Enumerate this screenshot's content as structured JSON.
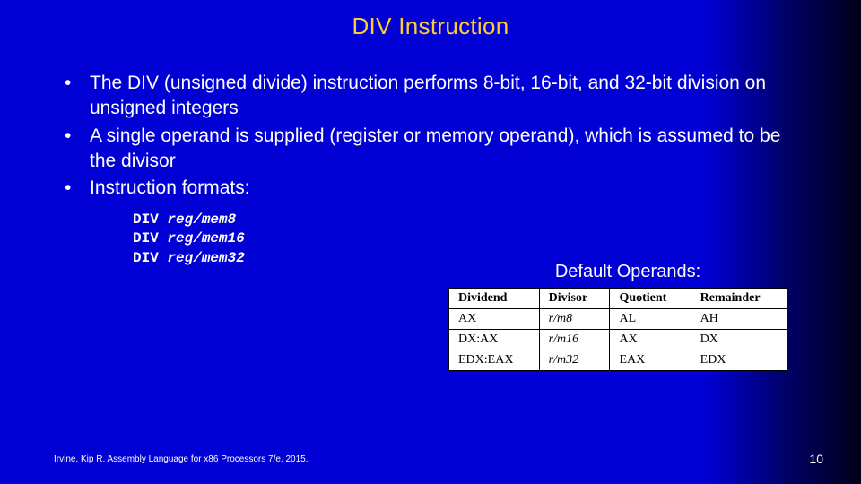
{
  "slide": {
    "title": "DIV Instruction",
    "bullets": [
      "The DIV (unsigned divide) instruction performs 8-bit, 16-bit, and 32-bit division on unsigned integers",
      "A single operand is supplied (register or memory operand), which is assumed to be the divisor",
      "Instruction formats:"
    ],
    "code": [
      {
        "kw": "DIV",
        "op": "reg/mem8"
      },
      {
        "kw": "DIV",
        "op": "reg/mem16"
      },
      {
        "kw": "DIV",
        "op": "reg/mem32"
      }
    ],
    "table": {
      "caption": "Default Operands:",
      "headers": [
        "Dividend",
        "Divisor",
        "Quotient",
        "Remainder"
      ],
      "rows": [
        [
          "AX",
          "r/m8",
          "AL",
          "AH"
        ],
        [
          "DX:AX",
          "r/m16",
          "AX",
          "DX"
        ],
        [
          "EDX:EAX",
          "r/m32",
          "EAX",
          "EDX"
        ]
      ]
    },
    "footer": "Irvine, Kip R. Assembly Language for x86 Processors 7/e, 2015.",
    "page": "10"
  },
  "style": {
    "title_color": "#ffcc33",
    "text_color": "#ffffff",
    "bg_gradient_from": "#0000d4",
    "bg_gradient_to": "#000018",
    "table_bg": "#ffffff",
    "table_border": "#000000",
    "title_fontsize": 26,
    "bullet_fontsize": 21,
    "code_fontsize": 16,
    "caption_fontsize": 20,
    "table_fontsize": 14,
    "footer_fontsize": 10,
    "page_fontsize": 14
  }
}
